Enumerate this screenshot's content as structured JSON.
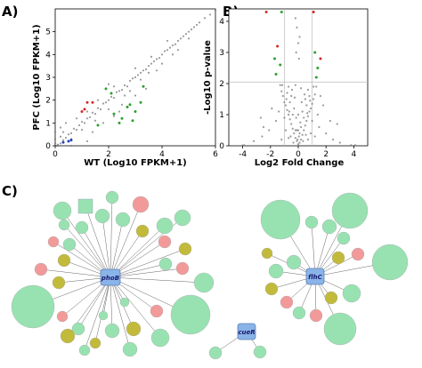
{
  "panels": {
    "a_label": "A)",
    "b_label": "B)",
    "c_label": "C)"
  },
  "colors": {
    "scatter_gray": "#7a7a7a",
    "grid_line": "#bbbbbb",
    "up_green": "#2ca02c",
    "down_red": "#d62728",
    "blue": "#1f3fbf",
    "node_green": "#98e2b2",
    "node_pink": "#f29a9a",
    "node_olive": "#c2ba3a",
    "hub_blue": "#8ab4e8",
    "edge": "#666666"
  },
  "chart_data": [
    {
      "type": "scatter",
      "panel": "A)",
      "xlabel": "WT (Log10 FPKM+1)",
      "ylabel": "PFC (Log10 FPKM+1)",
      "xlim": [
        0,
        6
      ],
      "ylim": [
        0,
        6
      ],
      "xticks": [
        0,
        2,
        4,
        6
      ],
      "yticks": [
        0,
        1,
        2,
        3,
        4,
        5
      ],
      "series": [
        {
          "color": "gray",
          "points": [
            [
              0.05,
              0.0
            ],
            [
              0.1,
              0.05
            ],
            [
              0.2,
              0.1
            ],
            [
              0.3,
              0.25
            ],
            [
              0.4,
              0.35
            ],
            [
              0.5,
              0.5
            ],
            [
              0.6,
              0.55
            ],
            [
              0.7,
              0.75
            ],
            [
              0.8,
              0.7
            ],
            [
              0.9,
              0.9
            ],
            [
              1.0,
              1.05
            ],
            [
              1.1,
              1.0
            ],
            [
              1.2,
              1.2
            ],
            [
              1.3,
              1.25
            ],
            [
              1.4,
              1.45
            ],
            [
              1.5,
              1.4
            ],
            [
              1.6,
              1.65
            ],
            [
              1.7,
              1.6
            ],
            [
              1.8,
              1.85
            ],
            [
              1.9,
              1.9
            ],
            [
              2.0,
              2.0
            ],
            [
              2.1,
              2.15
            ],
            [
              2.2,
              2.1
            ],
            [
              2.3,
              2.35
            ],
            [
              2.4,
              2.4
            ],
            [
              2.5,
              2.45
            ],
            [
              2.6,
              2.65
            ],
            [
              2.7,
              2.6
            ],
            [
              2.8,
              2.85
            ],
            [
              2.9,
              2.95
            ],
            [
              3.0,
              3.0
            ],
            [
              3.1,
              3.1
            ],
            [
              3.2,
              3.2
            ],
            [
              3.3,
              3.3
            ],
            [
              3.4,
              3.35
            ],
            [
              3.5,
              3.5
            ],
            [
              3.6,
              3.6
            ],
            [
              3.7,
              3.7
            ],
            [
              3.8,
              3.8
            ],
            [
              3.9,
              3.85
            ],
            [
              4.0,
              4.0
            ],
            [
              4.1,
              4.15
            ],
            [
              4.2,
              4.2
            ],
            [
              4.3,
              4.3
            ],
            [
              4.4,
              4.4
            ],
            [
              4.5,
              4.45
            ],
            [
              4.6,
              4.6
            ],
            [
              4.7,
              4.7
            ],
            [
              4.8,
              4.8
            ],
            [
              4.9,
              4.9
            ],
            [
              5.0,
              5.0
            ],
            [
              5.1,
              5.1
            ],
            [
              5.2,
              5.2
            ],
            [
              5.3,
              5.3
            ],
            [
              5.4,
              5.4
            ],
            [
              5.6,
              5.6
            ],
            [
              5.8,
              5.75
            ],
            [
              6.0,
              5.95
            ],
            [
              0.3,
              0.6
            ],
            [
              0.6,
              0.3
            ],
            [
              1.0,
              0.7
            ],
            [
              1.2,
              1.5
            ],
            [
              0.8,
              1.2
            ],
            [
              1.5,
              1.1
            ],
            [
              1.6,
              2.0
            ],
            [
              2.0,
              1.6
            ],
            [
              2.2,
              2.6
            ],
            [
              2.6,
              2.2
            ],
            [
              2.8,
              2.4
            ],
            [
              3.0,
              3.4
            ],
            [
              3.2,
              2.9
            ],
            [
              3.5,
              3.2
            ],
            [
              3.6,
              3.9
            ],
            [
              4.0,
              3.6
            ],
            [
              4.2,
              4.6
            ],
            [
              4.4,
              4.0
            ],
            [
              3.4,
              2.5
            ],
            [
              2.5,
              1.8
            ],
            [
              1.2,
              0.2
            ],
            [
              0.4,
              1.0
            ],
            [
              0.2,
              0.8
            ],
            [
              1.8,
              1.0
            ],
            [
              2.4,
              1.5
            ],
            [
              0.0,
              0.3
            ],
            [
              0.0,
              0.1
            ],
            [
              0.1,
              0.0
            ],
            [
              0.0,
              0.6
            ],
            [
              0.6,
              0.0
            ],
            [
              3.0,
              2.2
            ],
            [
              2.2,
              1.3
            ],
            [
              1.4,
              0.6
            ],
            [
              4.6,
              4.2
            ],
            [
              5.0,
              4.7
            ],
            [
              3.8,
              3.3
            ],
            [
              2.0,
              2.7
            ],
            [
              1.0,
              1.5
            ],
            [
              0.5,
              0.2
            ],
            [
              0.2,
              0.4
            ]
          ]
        },
        {
          "color": "green",
          "points": [
            [
              1.9,
              2.5
            ],
            [
              2.1,
              2.3
            ],
            [
              2.7,
              1.7
            ],
            [
              2.9,
              1.1
            ],
            [
              3.3,
              2.6
            ],
            [
              3.0,
              1.5
            ],
            [
              2.2,
              1.4
            ],
            [
              2.4,
              1.0
            ],
            [
              1.6,
              0.9
            ],
            [
              2.5,
              1.2
            ],
            [
              2.8,
              1.8
            ],
            [
              3.2,
              1.9
            ]
          ]
        },
        {
          "color": "red",
          "points": [
            [
              1.1,
              1.6
            ],
            [
              1.2,
              1.9
            ],
            [
              1.0,
              1.5
            ],
            [
              1.4,
              1.9
            ]
          ]
        },
        {
          "color": "blue",
          "points": [
            [
              0.5,
              0.2
            ],
            [
              0.3,
              0.15
            ],
            [
              0.6,
              0.25
            ]
          ]
        }
      ]
    },
    {
      "type": "scatter",
      "panel": "B)",
      "xlabel": "Log2 Fold Change",
      "ylabel": "-Log10 p-value",
      "xlim": [
        -5,
        5
      ],
      "ylim": [
        0,
        4.4
      ],
      "xticks": [
        -4,
        -2,
        0,
        2,
        4
      ],
      "yticks": [
        0,
        1,
        2,
        3,
        4
      ],
      "threshold_lines": {
        "horizontal_y": 2.05,
        "vertical_x": [
          -1,
          1
        ]
      },
      "series": [
        {
          "color": "gray",
          "points": [
            [
              0.0,
              0.05
            ],
            [
              0.1,
              0.1
            ],
            [
              -0.1,
              0.15
            ],
            [
              0.2,
              0.2
            ],
            [
              -0.2,
              0.25
            ],
            [
              0.3,
              0.35
            ],
            [
              -0.3,
              0.4
            ],
            [
              0.4,
              0.5
            ],
            [
              -0.4,
              0.55
            ],
            [
              0.5,
              0.65
            ],
            [
              -0.5,
              0.7
            ],
            [
              0.6,
              0.8
            ],
            [
              -0.6,
              0.85
            ],
            [
              0.7,
              0.95
            ],
            [
              -0.7,
              1.0
            ],
            [
              0.8,
              1.1
            ],
            [
              -0.8,
              1.15
            ],
            [
              0.9,
              1.2
            ],
            [
              -0.9,
              1.3
            ],
            [
              1.0,
              1.35
            ],
            [
              -1.0,
              1.4
            ],
            [
              1.1,
              1.5
            ],
            [
              -1.1,
              1.6
            ],
            [
              1.2,
              1.65
            ],
            [
              -1.2,
              1.75
            ],
            [
              0.2,
              0.6
            ],
            [
              -0.2,
              0.5
            ],
            [
              0.4,
              0.9
            ],
            [
              -0.4,
              1.0
            ],
            [
              0.6,
              1.3
            ],
            [
              -0.6,
              1.4
            ],
            [
              0.3,
              1.1
            ],
            [
              -0.3,
              1.2
            ],
            [
              0.8,
              1.6
            ],
            [
              -0.8,
              1.7
            ],
            [
              0.5,
              1.5
            ],
            [
              -0.5,
              1.6
            ],
            [
              0.1,
              0.4
            ],
            [
              -0.1,
              0.5
            ],
            [
              0.7,
              1.8
            ],
            [
              -0.7,
              1.9
            ],
            [
              1.3,
              1.9
            ],
            [
              -1.3,
              1.95
            ],
            [
              0.05,
              0.3
            ],
            [
              -0.05,
              0.2
            ],
            [
              1.5,
              0.6
            ],
            [
              -1.6,
              0.8
            ],
            [
              2.0,
              0.4
            ],
            [
              -2.1,
              0.5
            ],
            [
              2.5,
              0.2
            ],
            [
              -2.6,
              0.3
            ],
            [
              3.0,
              0.1
            ],
            [
              -3.2,
              0.15
            ],
            [
              0.9,
              0.4
            ],
            [
              -0.9,
              0.5
            ],
            [
              1.4,
              1.0
            ],
            [
              -1.4,
              1.1
            ],
            [
              1.8,
              1.3
            ],
            [
              -1.9,
              1.2
            ],
            [
              0.35,
              0.15
            ],
            [
              -0.35,
              0.1
            ],
            [
              0.15,
              0.75
            ],
            [
              -0.15,
              0.9
            ],
            [
              2.8,
              0.7
            ],
            [
              -2.7,
              0.9
            ],
            [
              0.45,
              1.65
            ],
            [
              -0.45,
              1.8
            ],
            [
              1.2,
              0.3
            ],
            [
              -1.2,
              0.2
            ],
            [
              0.0,
              0.5
            ],
            [
              0.0,
              1.0
            ],
            [
              0.25,
              1.4
            ],
            [
              -0.25,
              1.55
            ],
            [
              1.0,
              0.8
            ],
            [
              -1.0,
              0.9
            ],
            [
              0.55,
              0.35
            ],
            [
              -0.55,
              0.3
            ],
            [
              0.7,
              0.2
            ],
            [
              -0.7,
              0.25
            ],
            [
              1.6,
              1.6
            ],
            [
              -0.2,
              4.1
            ],
            [
              -0.1,
              3.8
            ],
            [
              0.0,
              3.3
            ],
            [
              0.1,
              3.5
            ],
            [
              -0.15,
              3.0
            ],
            [
              0.05,
              2.8
            ],
            [
              -3.9,
              0.02
            ],
            [
              3.8,
              0.02
            ],
            [
              -4.0,
              0.01
            ],
            [
              4.1,
              0.02
            ],
            [
              -2.5,
              0.6
            ],
            [
              2.3,
              0.8
            ],
            [
              1.1,
              1.9
            ],
            [
              -1.15,
              1.95
            ],
            [
              0.65,
              1.05
            ],
            [
              -0.65,
              1.1
            ],
            [
              0.85,
              1.45
            ],
            [
              -0.85,
              1.5
            ],
            [
              0.2,
              1.85
            ],
            [
              -0.2,
              1.95
            ]
          ]
        },
        {
          "color": "green",
          "points": [
            [
              -1.7,
              2.8
            ],
            [
              -1.2,
              4.3
            ],
            [
              1.2,
              3.0
            ],
            [
              1.4,
              2.5
            ],
            [
              -1.6,
              2.3
            ],
            [
              1.3,
              2.2
            ],
            [
              -1.3,
              2.6
            ]
          ]
        },
        {
          "color": "red",
          "points": [
            [
              -2.3,
              4.3
            ],
            [
              1.1,
              4.3
            ],
            [
              1.6,
              2.8
            ],
            [
              -1.5,
              3.2
            ]
          ]
        }
      ]
    }
  ],
  "network": {
    "hubs": {
      "phob": "phoB",
      "flhc": "flhC",
      "cuer": "cueR"
    }
  }
}
